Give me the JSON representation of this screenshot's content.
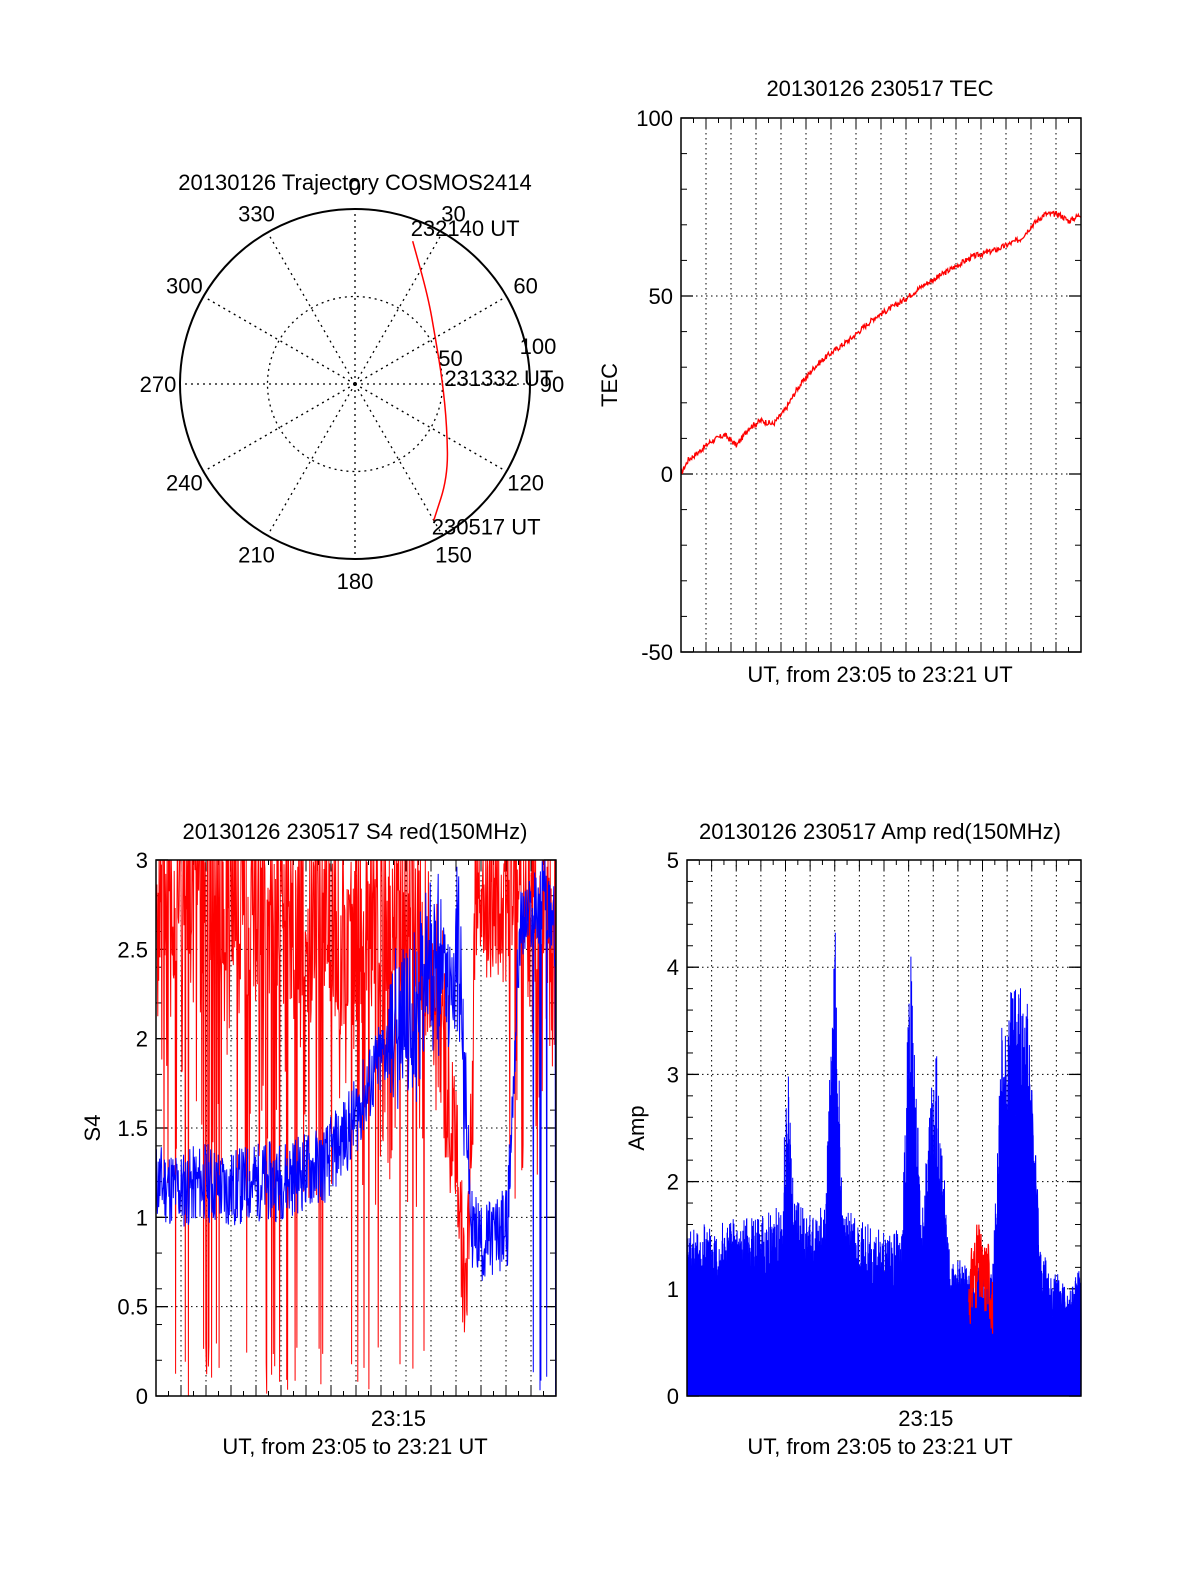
{
  "colors": {
    "red": "#ff0000",
    "blue": "#0000ff",
    "axis": "#000000"
  },
  "chart_data": [
    {
      "id": "polar",
      "type": "polar-trajectory",
      "title": "20130126 Trajectory COSMOS2414",
      "azimuth_labels": [
        "0",
        "30",
        "60",
        "90",
        "120",
        "150",
        "180",
        "210",
        "240",
        "270",
        "300",
        "330"
      ],
      "radial_labels": [
        "50",
        "100"
      ],
      "radial_max": 100,
      "points": [
        {
          "az": 22,
          "r": 88,
          "label": "232140 UT"
        },
        {
          "az": 40,
          "r": 65
        },
        {
          "az": 60,
          "r": 53
        },
        {
          "az": 88,
          "r": 50,
          "label": "231332 UT"
        },
        {
          "az": 115,
          "r": 58
        },
        {
          "az": 135,
          "r": 75
        },
        {
          "az": 150,
          "r": 90,
          "label": "230517 UT"
        }
      ]
    },
    {
      "id": "tec",
      "type": "line",
      "title": "20130126 230517 TEC",
      "xlabel": "UT, from 23:05 to 23:21 UT",
      "ylabel": "TEC",
      "xlim": [
        0,
        16.5
      ],
      "ylim": [
        -50,
        100
      ],
      "yticks": [
        "-50",
        "0",
        "50",
        "100"
      ],
      "grid": true,
      "series": [
        {
          "color": "red",
          "x": [
            0,
            0.3,
            0.7,
            1.2,
            1.8,
            2.3,
            2.8,
            3.3,
            3.8,
            4.3,
            4.8,
            5.5,
            6.0,
            7.0,
            8.0,
            9.0,
            10.0,
            11.0,
            12.0,
            13.0,
            14.0,
            14.5,
            15.0,
            15.6,
            16.0,
            16.5
          ],
          "y": [
            0,
            4,
            6,
            9,
            11,
            8,
            13,
            15,
            14,
            18,
            24,
            30,
            33,
            38,
            44,
            48,
            53,
            57,
            61,
            63,
            66,
            70,
            73,
            73,
            71,
            73
          ]
        }
      ]
    },
    {
      "id": "s4",
      "type": "line",
      "title": "20130126 230517 S4 red(150MHz)",
      "xlabel": "UT, from 23:05 to 23:21 UT",
      "ylabel": "S4",
      "xlim": [
        0,
        16.5
      ],
      "ylim": [
        0,
        3
      ],
      "yticks": [
        "0",
        "0.5",
        "1",
        "1.5",
        "2",
        "2.5",
        "3"
      ],
      "xtick": {
        "x": 10,
        "label": "23:15"
      },
      "grid": true,
      "series": [
        {
          "color": "red",
          "x": [
            0,
            2,
            4,
            6,
            7.5,
            8.5,
            9.5,
            10.5,
            11.5,
            12.3,
            12.8,
            13.2,
            13.6,
            14.0,
            15.0,
            16.0,
            16.5
          ],
          "y": [
            2.8,
            2.9,
            2.8,
            2.7,
            2.6,
            2.7,
            2.8,
            2.7,
            2.4,
            1.5,
            0.5,
            2.3,
            2.5,
            2.7,
            2.9,
            2.6,
            2.5
          ]
        },
        {
          "color": "blue",
          "x": [
            0,
            1,
            2,
            3,
            4,
            5,
            6,
            7,
            8,
            9,
            9.5,
            10,
            10.5,
            11,
            11.5,
            12,
            12.5,
            13,
            13.5,
            14,
            14.5,
            15,
            15.5,
            16,
            16.5
          ],
          "y": [
            1.2,
            1.15,
            1.2,
            1.15,
            1.2,
            1.2,
            1.25,
            1.3,
            1.5,
            1.8,
            1.95,
            2.05,
            2.1,
            2.3,
            2.4,
            2.3,
            2.5,
            0.95,
            0.85,
            0.9,
            0.95,
            2.6,
            2.7,
            2.8,
            2.6
          ]
        }
      ]
    },
    {
      "id": "amp",
      "type": "area",
      "title": "20130126 230517 Amp red(150MHz)",
      "xlabel": "UT, from 23:05 to 23:21 UT",
      "ylabel": "Amp",
      "xlim": [
        0,
        16.5
      ],
      "ylim": [
        0,
        5
      ],
      "yticks": [
        "0",
        "1",
        "2",
        "3",
        "4",
        "5"
      ],
      "xtick": {
        "x": 10,
        "label": "23:15"
      },
      "grid": true,
      "series": [
        {
          "color": "blue",
          "x": [
            0,
            1,
            2,
            3,
            4,
            4.2,
            4.5,
            5,
            5.8,
            6.2,
            6.5,
            7,
            8,
            9,
            9.4,
            9.8,
            10.4,
            11,
            12,
            12.8,
            13.2,
            13.5,
            14,
            14.3,
            14.8,
            15.2,
            16,
            16.5
          ],
          "y": [
            1.3,
            1.35,
            1.4,
            1.4,
            1.5,
            2.8,
            1.6,
            1.4,
            1.5,
            3.8,
            1.5,
            1.4,
            1.3,
            1.3,
            3.9,
            1.3,
            2.8,
            1.1,
            1.0,
            1.0,
            3.0,
            3.2,
            3.3,
            3.0,
            1.2,
            1.0,
            0.9,
            1.0
          ]
        },
        {
          "color": "red",
          "x": [
            11.8,
            12.0,
            12.2,
            12.4,
            12.6,
            12.8
          ],
          "y": [
            1.1,
            1.4,
            1.5,
            1.3,
            1.4,
            1.0
          ]
        }
      ]
    }
  ]
}
